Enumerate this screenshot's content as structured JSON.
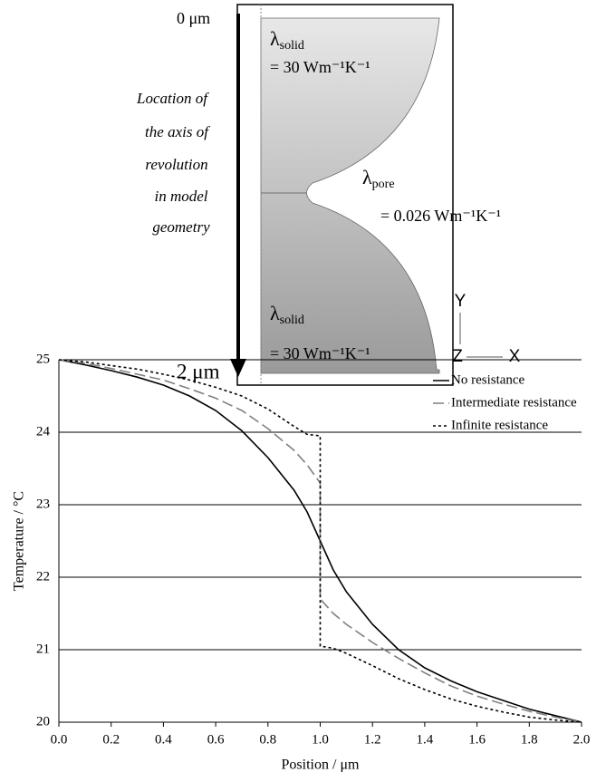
{
  "diagram": {
    "top_label": "0 μm",
    "bottom_label": "2 μm",
    "axis_note": [
      "Location of",
      "the axis of",
      "revolution",
      "in model",
      "geometry"
    ],
    "solid_top": {
      "symbol": "λ",
      "subscript": "solid",
      "value": "= 30 Wm⁻¹K⁻¹"
    },
    "pore": {
      "symbol": "λ",
      "subscript": "pore",
      "value": "= 0.026 Wm⁻¹K⁻¹"
    },
    "solid_bottom": {
      "symbol": "λ",
      "subscript": "solid",
      "value": "= 30 Wm⁻¹K⁻¹"
    },
    "axes": {
      "y": "Y",
      "z": "Z",
      "x": "X"
    }
  },
  "chart_data": {
    "type": "line",
    "xlabel": "Position / μm",
    "ylabel": "Temperature / °C",
    "x": [
      0,
      0.1,
      0.2,
      0.3,
      0.4,
      0.5,
      0.6,
      0.7,
      0.8,
      0.9,
      0.95,
      1,
      1,
      1.05,
      1.1,
      1.2,
      1.3,
      1.4,
      1.5,
      1.6,
      1.7,
      1.8,
      1.9,
      2
    ],
    "series": [
      {
        "name": "No resistance",
        "color": "#000000",
        "dash": "solid",
        "values": [
          25,
          24.93,
          24.85,
          24.76,
          24.65,
          24.5,
          24.3,
          24.02,
          23.65,
          23.2,
          22.9,
          22.5,
          22.5,
          22.1,
          21.8,
          21.35,
          21.0,
          20.75,
          20.57,
          20.42,
          20.3,
          20.18,
          20.09,
          20
        ]
      },
      {
        "name": "Intermediate resistance",
        "color": "#808080",
        "dash": "dashed",
        "values": [
          25,
          24.95,
          24.88,
          24.8,
          24.72,
          24.6,
          24.47,
          24.3,
          24.05,
          23.75,
          23.55,
          23.3,
          21.7,
          21.5,
          21.35,
          21.1,
          20.88,
          20.68,
          20.5,
          20.36,
          20.25,
          20.15,
          20.07,
          20
        ]
      },
      {
        "name": "Infinite resistance",
        "color": "#000000",
        "dash": "dotted",
        "values": [
          25,
          24.97,
          24.92,
          24.87,
          24.8,
          24.72,
          24.62,
          24.5,
          24.32,
          24.08,
          23.97,
          23.95,
          21.05,
          21.02,
          20.95,
          20.78,
          20.6,
          20.45,
          20.32,
          20.22,
          20.14,
          20.07,
          20.03,
          20
        ]
      }
    ],
    "xlim": [
      0,
      2
    ],
    "ylim": [
      20,
      25
    ],
    "xticks": [
      {
        "value": 0,
        "label": "0.0"
      },
      {
        "value": 0.2,
        "label": "0.2"
      },
      {
        "value": 0.4,
        "label": "0.4"
      },
      {
        "value": 0.6,
        "label": "0.6"
      },
      {
        "value": 0.8,
        "label": "0.8"
      },
      {
        "value": 1,
        "label": "1.0"
      },
      {
        "value": 1.2,
        "label": "1.2"
      },
      {
        "value": 1.4,
        "label": "1.4"
      },
      {
        "value": 1.6,
        "label": "1.6"
      },
      {
        "value": 1.8,
        "label": "1.8"
      },
      {
        "value": 2,
        "label": "2.0"
      }
    ],
    "yticks": [
      20,
      21,
      22,
      23,
      24,
      25
    ],
    "grid": true,
    "legend": "top-right"
  }
}
